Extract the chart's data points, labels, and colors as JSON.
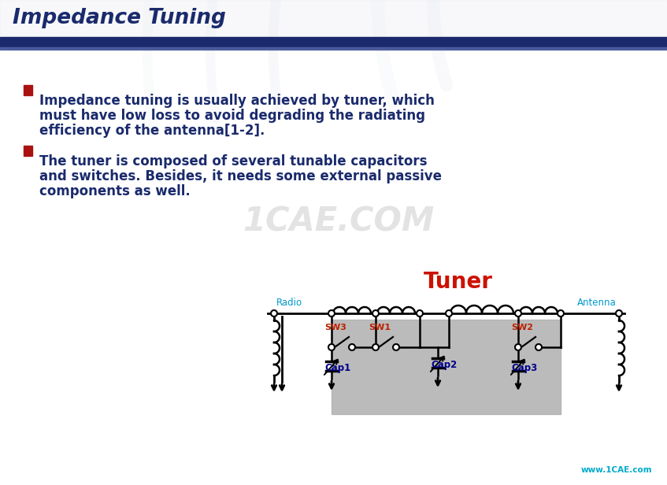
{
  "title": "Impedance Tuning",
  "title_color": "#1a2a6c",
  "header_bar_color": "#1a2a6c",
  "header_bar2_color": "#4a5a9c",
  "bg_top_color": "#d8dce8",
  "bullet1_lines": [
    "Impedance tuning is usually achieved by tuner, which",
    "must have low loss to avoid degrading the radiating",
    "efficiency of the antenna[1-2]."
  ],
  "bullet2_lines": [
    "The tuner is composed of several tunable capacitors",
    "and switches. Besides, it needs some external passive",
    "components as well."
  ],
  "text_color": "#1a2a6c",
  "bullet_marker_color": "#aa1111",
  "tuner_text": "Tuner",
  "tuner_color": "#cc1100",
  "radio_text": "Radio",
  "antenna_text": "Antenna",
  "label_color": "#0099cc",
  "sw_color": "#bb2200",
  "cap_color": "#00008b",
  "gray_color": "#b0b0b0",
  "watermark_text": "1CAE.COM",
  "watermark_color": "#cccccc",
  "logo_text": "www.1CAE.com",
  "logo_color": "#00aacc",
  "wire_color": "#000000",
  "slide_bg": "#ffffff"
}
